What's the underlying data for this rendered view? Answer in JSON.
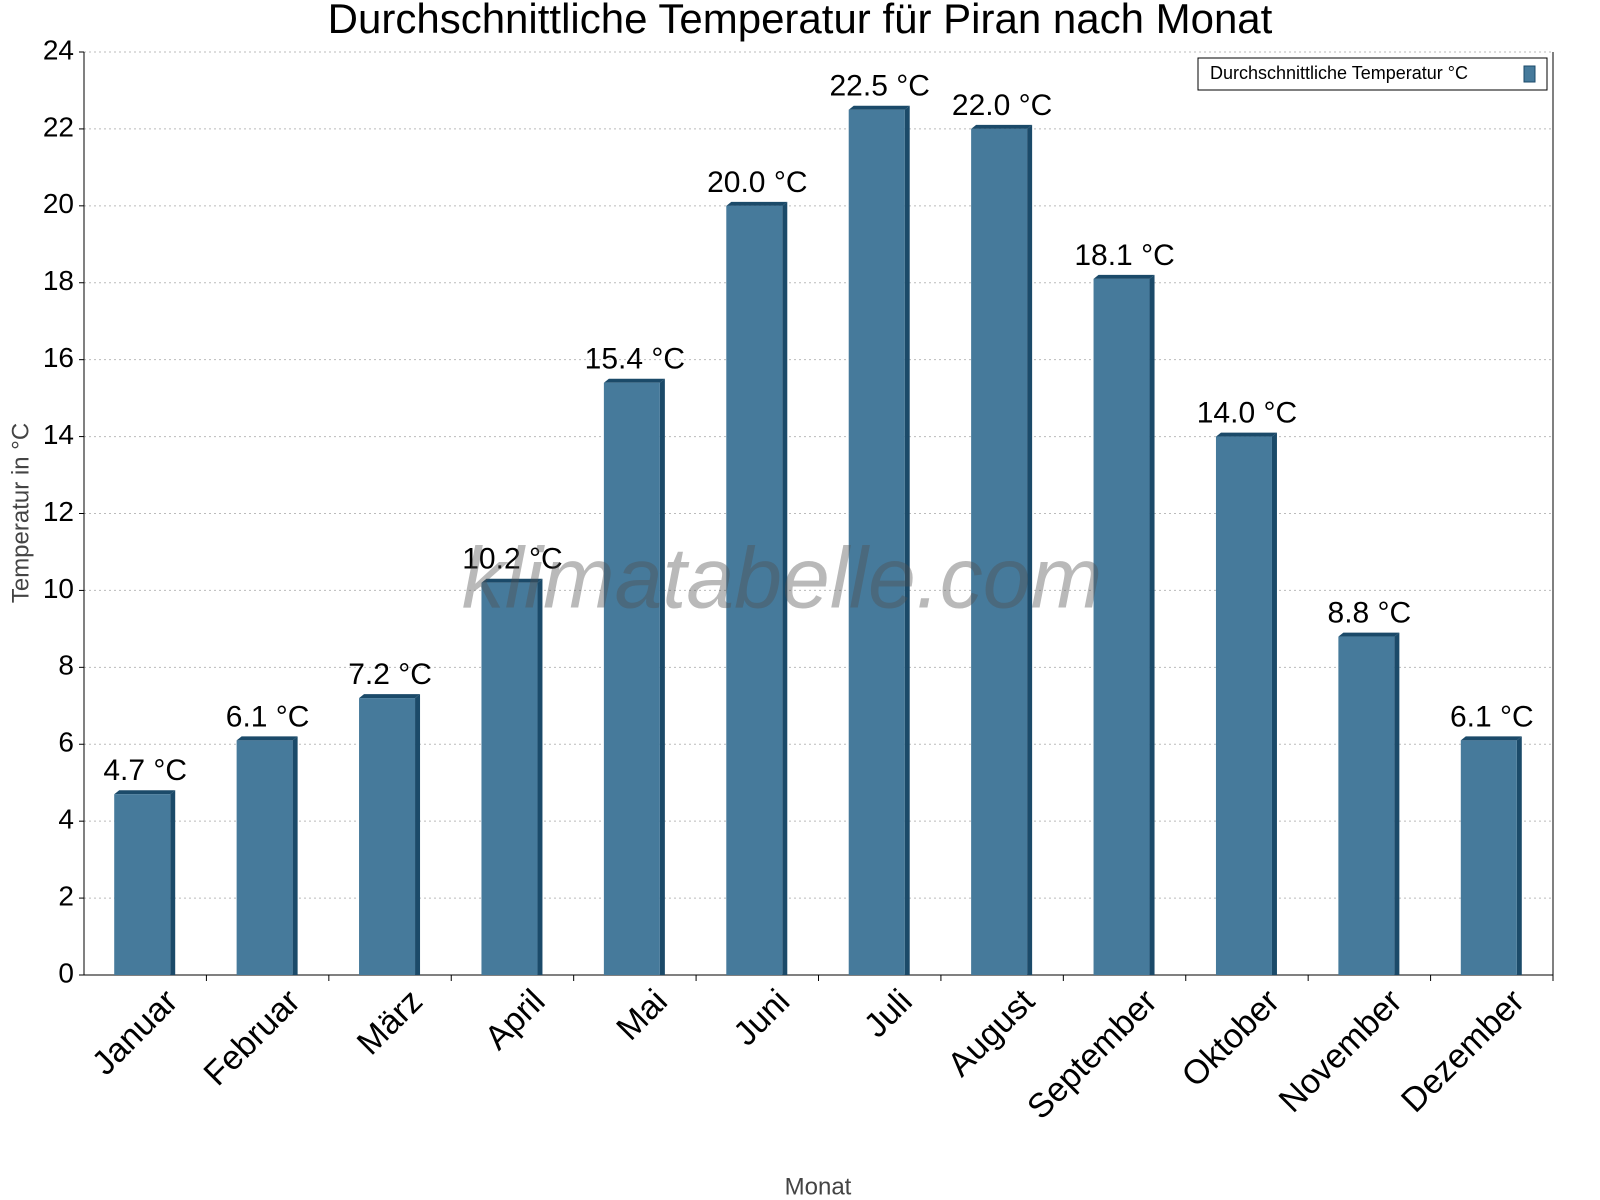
{
  "chart_data": {
    "type": "bar",
    "title": "Durchschnittliche Temperatur für Piran nach Monat",
    "x_label": "Monat",
    "y_label": "Temperatur in °C",
    "watermark": "klimatabelle.com",
    "categories": [
      "Januar",
      "Februar",
      "März",
      "April",
      "Mai",
      "Juni",
      "Juli",
      "August",
      "September",
      "Oktober",
      "November",
      "Dezember"
    ],
    "series": [
      {
        "name": "Durchschnittliche Temperatur °C",
        "color": "#467a9b",
        "values": [
          4.7,
          6.1,
          7.2,
          10.2,
          15.4,
          20.0,
          22.5,
          22.0,
          18.1,
          14.0,
          8.8,
          6.1
        ],
        "value_labels": [
          "4.7 °C",
          "6.1 °C",
          "7.2 °C",
          "10.2 °C",
          "15.4 °C",
          "20.0 °C",
          "22.5 °C",
          "22.0 °C",
          "18.1 °C",
          "14.0 °C",
          "8.8 °C",
          "6.1 °C"
        ]
      }
    ],
    "ylim": [
      0,
      24
    ],
    "yticks": [
      0,
      2,
      4,
      6,
      8,
      10,
      12,
      14,
      16,
      18,
      20,
      22,
      24
    ],
    "grid": true,
    "legend": "upper right"
  }
}
